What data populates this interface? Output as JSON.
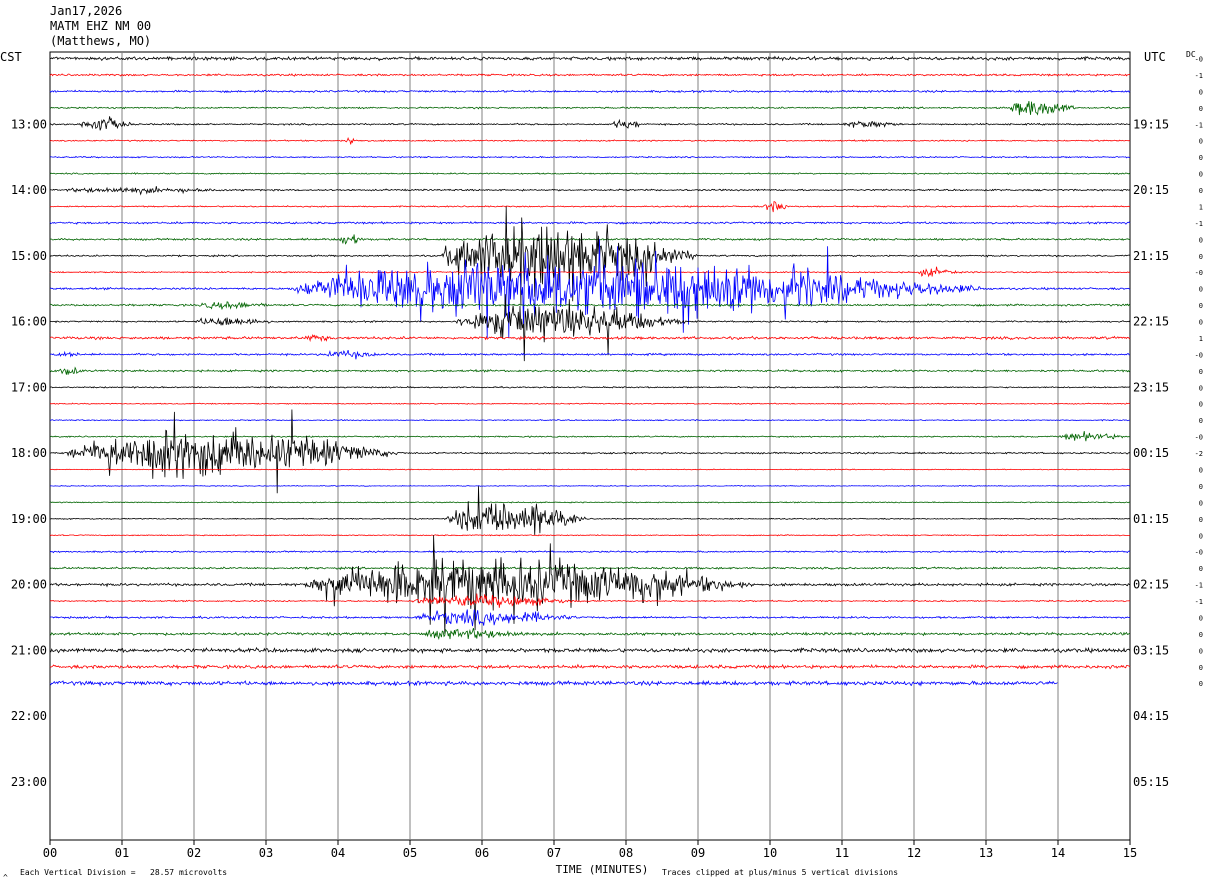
{
  "header": {
    "date": "Jan17,2026",
    "station": "MATM EHZ NM 00",
    "location": "(Matthews, MO)"
  },
  "left_axis_title": "CST",
  "right_axis_title": "UTC",
  "dc_title": "DC",
  "footer": {
    "scale_note": "Each Vertical Division =   28.57 microvolts",
    "clip_note": "Traces clipped at plus/minus 5 vertical divisions",
    "corner_mark": "^"
  },
  "colors": {
    "cycle": [
      "#000000",
      "#ff0000",
      "#0000ff",
      "#006400"
    ],
    "grid": "#808080"
  },
  "chart_data": {
    "type": "helicorder",
    "title": "MATM EHZ NM 00 (Matthews, MO)",
    "xlabel": "TIME (MINUTES)",
    "xlim": [
      0,
      15
    ],
    "x_ticks": [
      "00",
      "01",
      "02",
      "03",
      "04",
      "05",
      "06",
      "07",
      "08",
      "09",
      "10",
      "11",
      "12",
      "13",
      "14",
      "15"
    ],
    "rows_per_hour": 4,
    "cst_labels": [
      {
        "row": 4,
        "text": "13:00"
      },
      {
        "row": 8,
        "text": "14:00"
      },
      {
        "row": 12,
        "text": "15:00"
      },
      {
        "row": 16,
        "text": "16:00"
      },
      {
        "row": 20,
        "text": "17:00"
      },
      {
        "row": 24,
        "text": "18:00"
      },
      {
        "row": 28,
        "text": "19:00"
      },
      {
        "row": 32,
        "text": "20:00"
      },
      {
        "row": 36,
        "text": "21:00"
      },
      {
        "row": 40,
        "text": "22:00"
      },
      {
        "row": 44,
        "text": "23:00"
      }
    ],
    "utc_labels": [
      {
        "row": 4,
        "text": "19:15"
      },
      {
        "row": 8,
        "text": "20:15"
      },
      {
        "row": 12,
        "text": "21:15"
      },
      {
        "row": 16,
        "text": "22:15"
      },
      {
        "row": 20,
        "text": "23:15"
      },
      {
        "row": 24,
        "text": "00:15"
      },
      {
        "row": 28,
        "text": "01:15"
      },
      {
        "row": 32,
        "text": "02:15"
      },
      {
        "row": 36,
        "text": "03:15"
      },
      {
        "row": 40,
        "text": "04:15"
      },
      {
        "row": 44,
        "text": "05:15"
      }
    ],
    "dc_offsets": [
      "-0",
      "-1",
      "0",
      "0",
      "-1",
      "0",
      "0",
      "0",
      "0",
      "1",
      "-1",
      "0",
      "0",
      "-0",
      "0",
      "0",
      "0",
      "1",
      "-0",
      "0",
      "0",
      "0",
      "0",
      "-0",
      "-2",
      "0",
      "0",
      "0",
      "0",
      "0",
      "-0",
      "0",
      "-1",
      "-1",
      "0",
      "0",
      "0",
      "0",
      "0"
    ],
    "trace_count": 39,
    "last_trace_end_minute": 14.0,
    "background_noise": [
      0.25,
      0.15,
      0.15,
      0.12,
      0.12,
      0.1,
      0.1,
      0.1,
      0.12,
      0.1,
      0.15,
      0.15,
      0.12,
      0.1,
      0.15,
      0.15,
      0.12,
      0.2,
      0.15,
      0.15,
      0.1,
      0.08,
      0.08,
      0.1,
      0.12,
      0.06,
      0.06,
      0.08,
      0.08,
      0.08,
      0.12,
      0.15,
      0.2,
      0.1,
      0.15,
      0.2,
      0.3,
      0.25,
      0.3
    ],
    "events": [
      {
        "row": 3,
        "start": 13.3,
        "end": 14.3,
        "amp": 1.4
      },
      {
        "row": 4,
        "start": 0.4,
        "end": 1.2,
        "amp": 1.2
      },
      {
        "row": 4,
        "start": 7.8,
        "end": 8.3,
        "amp": 0.8
      },
      {
        "row": 4,
        "start": 11.0,
        "end": 11.9,
        "amp": 0.6
      },
      {
        "row": 5,
        "start": 4.1,
        "end": 4.3,
        "amp": 0.8
      },
      {
        "row": 8,
        "start": 0.1,
        "end": 2.8,
        "amp": 0.5
      },
      {
        "row": 9,
        "start": 9.9,
        "end": 10.3,
        "amp": 0.9
      },
      {
        "row": 11,
        "start": 4.0,
        "end": 4.4,
        "amp": 1.0
      },
      {
        "row": 12,
        "start": 5.4,
        "end": 9.1,
        "amp": 5.0
      },
      {
        "row": 13,
        "start": 12.0,
        "end": 12.7,
        "amp": 0.7
      },
      {
        "row": 14,
        "start": 3.3,
        "end": 13.3,
        "amp": 4.5
      },
      {
        "row": 15,
        "start": 2.0,
        "end": 3.2,
        "amp": 0.6
      },
      {
        "row": 16,
        "start": 2.0,
        "end": 3.2,
        "amp": 0.8
      },
      {
        "row": 16,
        "start": 5.6,
        "end": 9.0,
        "amp": 2.5
      },
      {
        "row": 17,
        "start": 3.5,
        "end": 4.0,
        "amp": 0.6
      },
      {
        "row": 18,
        "start": 0.1,
        "end": 0.5,
        "amp": 0.5
      },
      {
        "row": 18,
        "start": 3.7,
        "end": 4.8,
        "amp": 0.6
      },
      {
        "row": 19,
        "start": 0.1,
        "end": 0.5,
        "amp": 0.7
      },
      {
        "row": 23,
        "start": 14.0,
        "end": 15.0,
        "amp": 0.7
      },
      {
        "row": 24,
        "start": 0.2,
        "end": 5.0,
        "amp": 3.5
      },
      {
        "row": 28,
        "start": 5.5,
        "end": 7.5,
        "amp": 3.0
      },
      {
        "row": 32,
        "start": 3.5,
        "end": 10.0,
        "amp": 4.0
      },
      {
        "row": 33,
        "start": 5.0,
        "end": 7.5,
        "amp": 1.0
      },
      {
        "row": 34,
        "start": 5.0,
        "end": 7.5,
        "amp": 1.2
      },
      {
        "row": 35,
        "start": 5.0,
        "end": 7.0,
        "amp": 0.8
      }
    ]
  }
}
